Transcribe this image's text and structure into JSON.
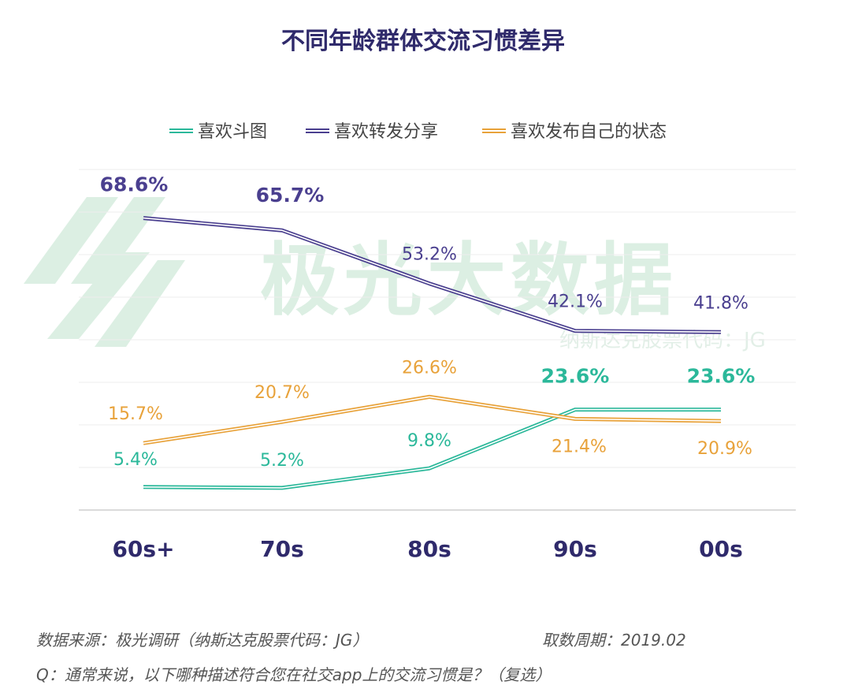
{
  "chart_data": {
    "type": "line",
    "title": "不同年龄群体交流习惯差异",
    "categories": [
      "60s+",
      "70s",
      "80s",
      "90s",
      "00s"
    ],
    "series": [
      {
        "name": "喜欢斗图",
        "color": "#2bb89a",
        "values": [
          5.4,
          5.2,
          9.8,
          23.6,
          23.6
        ],
        "labels": [
          "5.4%",
          "5.2%",
          "9.8%",
          "23.6%",
          "23.6%"
        ]
      },
      {
        "name": "喜欢转发分享",
        "color": "#4a3f8f",
        "values": [
          68.6,
          65.7,
          53.2,
          42.1,
          41.8
        ],
        "labels": [
          "68.6%",
          "65.7%",
          "53.2%",
          "42.1%",
          "41.8%"
        ]
      },
      {
        "name": "喜欢发布自己的状态",
        "color": "#e8a23a",
        "values": [
          15.7,
          20.7,
          26.6,
          21.4,
          20.9
        ],
        "labels": [
          "15.7%",
          "20.7%",
          "26.6%",
          "21.4%",
          "20.9%"
        ]
      }
    ],
    "ylim": [
      0,
      80
    ],
    "grid": true,
    "legend": "top-center"
  },
  "watermark": {
    "text": "极光大数据",
    "sub": "纳斯达克股票代码：JG"
  },
  "footer": {
    "source": "数据来源：极光调研（纳斯达克股票代码：JG）",
    "date": "取数周期：2019.02",
    "question": "Q：通常来说，以下哪种描述符合您在社交app上的交流习惯是？（复选）"
  }
}
